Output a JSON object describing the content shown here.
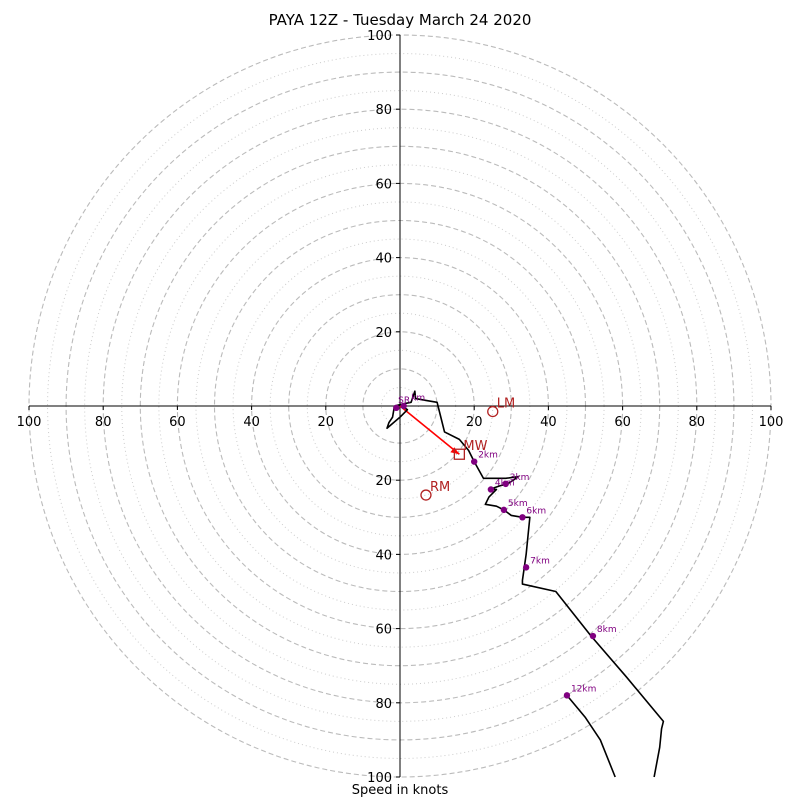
{
  "chart_data": {
    "type": "hodograph",
    "title": "PAYA 12Z - Tuesday March 24 2020",
    "xlabel": "Speed in knots",
    "ylabel": "",
    "xlim": [
      -100,
      100
    ],
    "ylim": [
      -100,
      100
    ],
    "ring_speeds_dashed": [
      10,
      20,
      30,
      40,
      50,
      60,
      70,
      80,
      90,
      100
    ],
    "ring_speeds_dotted": [
      5,
      15,
      25,
      35,
      45,
      55,
      65,
      75,
      85,
      95
    ],
    "x_tick_labels": [
      "100",
      "80",
      "60",
      "40",
      "20",
      "20",
      "40",
      "60",
      "80",
      "100"
    ],
    "y_tick_labels_upper": [
      "20",
      "40",
      "60",
      "80",
      "100"
    ],
    "y_tick_labels_lower": [
      "20",
      "40",
      "60",
      "80",
      "100"
    ],
    "colors": {
      "trace": "#000000",
      "markers": "#800080",
      "storm": "#b22222",
      "shear_vector": "#ff0000",
      "rings": "#bbbbbb"
    },
    "hodograph_trace": [
      [
        -1.5,
        0
      ],
      [
        0.5,
        0.5
      ],
      [
        3,
        1
      ],
      [
        4,
        4
      ],
      [
        4.2,
        2
      ],
      [
        7,
        1.5
      ],
      [
        10,
        1
      ],
      [
        11,
        -3
      ],
      [
        12,
        -7
      ],
      [
        16,
        -9
      ],
      [
        18.5,
        -12
      ],
      [
        20,
        -15
      ],
      [
        22.5,
        -19.5
      ],
      [
        26,
        -19.5
      ],
      [
        28.5,
        -19.5
      ],
      [
        32,
        -19
      ],
      [
        29,
        -21
      ],
      [
        27,
        -21.5
      ],
      [
        25.5,
        -22
      ],
      [
        24.5,
        -22.5
      ],
      [
        26,
        -22.5
      ],
      [
        24,
        -24.5
      ],
      [
        23,
        -26.5
      ],
      [
        26,
        -27
      ],
      [
        28,
        -28
      ],
      [
        30,
        -29.5
      ],
      [
        33,
        -30
      ],
      [
        35,
        -30
      ],
      [
        34.5,
        -35
      ],
      [
        34,
        -40
      ],
      [
        33.5,
        -43.5
      ],
      [
        33,
        -47
      ],
      [
        33,
        -48
      ],
      [
        42,
        -50
      ],
      [
        51.5,
        -62
      ],
      [
        61,
        -73
      ],
      [
        71,
        -85
      ],
      [
        70.5,
        -87
      ],
      [
        70,
        -92
      ],
      [
        68.5,
        -100
      ]
    ],
    "hodograph_trace_low": [
      [
        -1.5,
        0
      ],
      [
        -2,
        -3
      ],
      [
        -3,
        -4.5
      ],
      [
        -3.5,
        -6
      ],
      [
        0,
        -3
      ],
      [
        2,
        -1
      ],
      [
        0.5,
        0
      ]
    ],
    "hodograph_trace_upper": [
      [
        45,
        -78
      ],
      [
        50,
        -84
      ],
      [
        54,
        -90
      ],
      [
        58,
        -100
      ]
    ],
    "height_markers": [
      {
        "label": "",
        "u": -1,
        "v": -0.5
      },
      {
        "label": "",
        "u": 1,
        "v": 0
      },
      {
        "label": "2km",
        "u": 20,
        "v": -15
      },
      {
        "label": "3km",
        "u": 28.5,
        "v": -21
      },
      {
        "label": "4km",
        "u": 24.5,
        "v": -22.5
      },
      {
        "label": "5km",
        "u": 28,
        "v": -28
      },
      {
        "label": "6km",
        "u": 33,
        "v": -30
      },
      {
        "label": "7km",
        "u": 34,
        "v": -43.5
      },
      {
        "label": "8km",
        "u": 52,
        "v": -62
      },
      {
        "label": "12km",
        "u": 45,
        "v": -78
      }
    ],
    "near_origin_labels": [
      "SR",
      "km"
    ],
    "storm_motion": [
      {
        "label": "LM",
        "u": 25,
        "v": -1.5,
        "marker": "circle"
      },
      {
        "label": "MW",
        "u": 16,
        "v": -13,
        "marker": "square"
      },
      {
        "label": "RM",
        "u": 7,
        "v": -24,
        "marker": "circle"
      }
    ],
    "shear_vector": {
      "from": [
        0,
        0
      ],
      "to": [
        16,
        -13
      ]
    }
  }
}
